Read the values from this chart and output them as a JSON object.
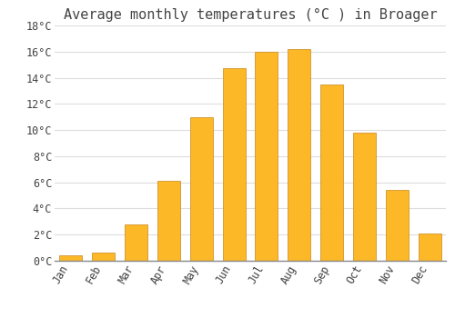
{
  "title": "Average monthly temperatures (°C ) in Broager",
  "months": [
    "Jan",
    "Feb",
    "Mar",
    "Apr",
    "May",
    "Jun",
    "Jul",
    "Aug",
    "Sep",
    "Oct",
    "Nov",
    "Dec"
  ],
  "values": [
    0.4,
    0.6,
    2.8,
    6.1,
    11.0,
    14.7,
    16.0,
    16.2,
    13.5,
    9.8,
    5.4,
    2.1
  ],
  "bar_color": "#FDB827",
  "bar_edge_color": "#C8861A",
  "background_color": "#FFFFFF",
  "grid_color": "#DDDDDD",
  "text_color": "#444444",
  "ylim": [
    0,
    18
  ],
  "yticks": [
    0,
    2,
    4,
    6,
    8,
    10,
    12,
    14,
    16,
    18
  ],
  "ytick_labels": [
    "0°C",
    "2°C",
    "4°C",
    "6°C",
    "8°C",
    "10°C",
    "12°C",
    "14°C",
    "16°C",
    "18°C"
  ],
  "title_fontsize": 11,
  "tick_fontsize": 8.5,
  "font_family": "monospace",
  "bar_width": 0.7
}
